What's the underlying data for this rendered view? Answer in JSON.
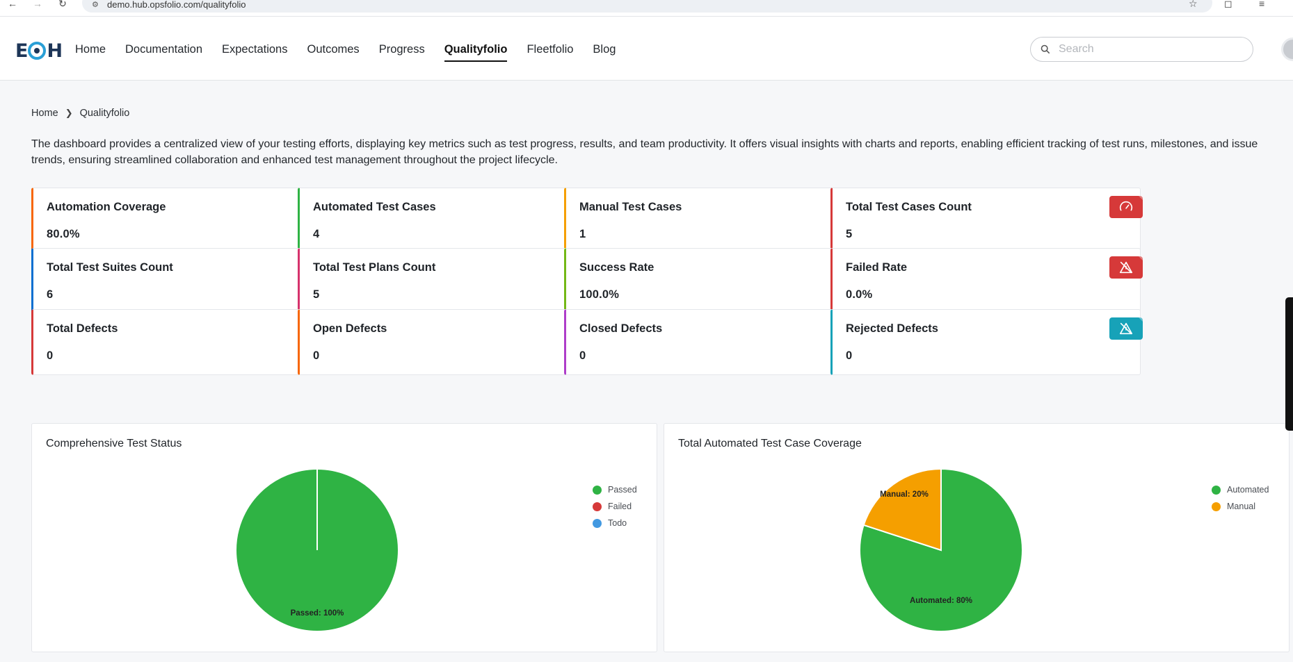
{
  "browser": {
    "url": "demo.hub.opsfolio.com/qualityfolio"
  },
  "header": {
    "logo_text": "EOH",
    "nav": [
      {
        "label": "Home",
        "active": false
      },
      {
        "label": "Documentation",
        "active": false
      },
      {
        "label": "Expectations",
        "active": false
      },
      {
        "label": "Outcomes",
        "active": false
      },
      {
        "label": "Progress",
        "active": false
      },
      {
        "label": "Qualityfolio",
        "active": true
      },
      {
        "label": "Fleetfolio",
        "active": false
      },
      {
        "label": "Blog",
        "active": false
      }
    ],
    "search_placeholder": "Search"
  },
  "breadcrumb": {
    "home": "Home",
    "current": "Qualityfolio"
  },
  "description": "The dashboard provides a centralized view of your testing efforts, displaying key metrics such as test progress, results, and team productivity. It offers visual insights with charts and reports, enabling efficient tracking of test runs, milestones, and issue trends, ensuring streamlined collaboration and enhanced test management throughout the project lifecycle.",
  "cards": [
    {
      "title": "Automation Coverage",
      "value": "80.0%",
      "color": "#f76707",
      "icon": "automation-icon"
    },
    {
      "title": "Automated Test Cases",
      "value": "4",
      "color": "#2fb344",
      "icon": "automation-icon"
    },
    {
      "title": "Manual Test Cases",
      "value": "1",
      "color": "#f59f00",
      "icon": "manual-settings-icon"
    },
    {
      "title": "Total Test Cases Count",
      "value": "5",
      "color": "#d63939",
      "icon": "gauge-icon"
    },
    {
      "title": "Total Test Suites Count",
      "value": "6",
      "color": "#066fd1",
      "icon": "sigma-icon"
    },
    {
      "title": "Total Test Plans Count",
      "value": "5",
      "color": "#d6336c",
      "icon": "presentation-icon"
    },
    {
      "title": "Success Rate",
      "value": "100.0%",
      "color": "#74b816",
      "icon": "check-circle-icon"
    },
    {
      "title": "Failed Rate",
      "value": "0.0%",
      "color": "#d63939",
      "icon": "alert-off-icon"
    },
    {
      "title": "Total Defects",
      "value": "0",
      "color": "#d63939",
      "icon": "alert-off-icon"
    },
    {
      "title": "Open Defects",
      "value": "0",
      "color": "#f76707",
      "icon": "alert-off-icon"
    },
    {
      "title": "Closed Defects",
      "value": "0",
      "color": "#ae3ec9",
      "icon": "alert-off-icon"
    },
    {
      "title": "Rejected Defects",
      "value": "0",
      "color": "#17a2b8",
      "icon": "alert-off-icon"
    }
  ],
  "chart_data": [
    {
      "type": "pie",
      "title": "Comprehensive Test Status",
      "categories": [
        "Passed",
        "Failed",
        "Todo"
      ],
      "values": [
        100,
        0,
        0
      ],
      "colors": [
        "#2fb344",
        "#d63939",
        "#4299e1"
      ],
      "slice_labels": [
        "Passed: 100%"
      ],
      "legend": "right"
    },
    {
      "type": "pie",
      "title": "Total Automated Test Case Coverage",
      "categories": [
        "Automated",
        "Manual"
      ],
      "values": [
        80,
        20
      ],
      "colors": [
        "#2fb344",
        "#f59f00"
      ],
      "slice_labels": [
        "Automated: 80%",
        "Manual: 20%"
      ],
      "legend": "right"
    }
  ]
}
